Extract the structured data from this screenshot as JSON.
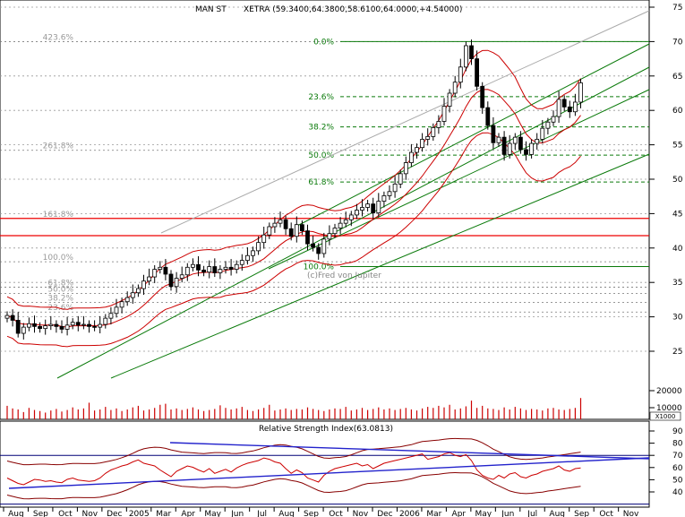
{
  "chart_data": [
    {
      "type": "candlestick",
      "title": "MAN ST",
      "quote_label": "XETRA (59.3400,64.3800,58.6100,64.0000,+4.54000)",
      "watermark": "(c)Fred von Jupiter",
      "ylim": [
        23,
        76
      ],
      "y_ticks": [
        25,
        30,
        35,
        40,
        45,
        50,
        55,
        60,
        65,
        70,
        75
      ],
      "fib_top": {
        "labels": [
          "0.0%",
          "23.6%",
          "38.2%",
          "50.0%",
          "61.8%",
          "100.0%"
        ],
        "values": [
          70.0,
          62.0,
          57.6,
          53.5,
          49.6,
          37.3
        ]
      },
      "fib_ext": {
        "labels": [
          "423.6%",
          "261.8%",
          "161.8%",
          "100.0%",
          "61.8%",
          "50.0%",
          "38.2%",
          "23.6%"
        ],
        "values": [
          70.0,
          54.2,
          44.3,
          38.0,
          34.3,
          33.4,
          32.1,
          30.7
        ]
      },
      "x_months": [
        "Aug",
        "Sep",
        "Oct",
        "Nov",
        "Dec",
        "2005",
        "Mar",
        "Apr",
        "May",
        "Jun",
        "Jul",
        "Aug",
        "Sep",
        "Oct",
        "Nov",
        "Dec",
        "2006",
        "Mar",
        "Apr",
        "May",
        "Jun",
        "Jul",
        "Aug",
        "Sep",
        "Oct",
        "Nov"
      ],
      "weekly_close": [
        30.2,
        29.5,
        27.6,
        28.5,
        29.0,
        28.6,
        28.3,
        28.7,
        28.9,
        28.6,
        28.2,
        28.8,
        29.2,
        28.8,
        28.9,
        28.6,
        28.5,
        28.9,
        29.8,
        30.5,
        31.4,
        32.2,
        32.8,
        33.5,
        34.1,
        35.2,
        35.8,
        36.9,
        37.2,
        36.2,
        34.4,
        35.6,
        36.1,
        37.2,
        37.6,
        36.8,
        36.5,
        37.3,
        36.4,
        36.9,
        37.2,
        36.9,
        37.6,
        38.2,
        38.9,
        39.6,
        40.8,
        41.9,
        43.1,
        43.6,
        44.1,
        42.8,
        41.7,
        43.4,
        42.5,
        40.6,
        40.1,
        39.2,
        41.3,
        42.1,
        42.9,
        43.6,
        44.1,
        44.8,
        45.5,
        45.9,
        46.4,
        45.1,
        46.8,
        47.6,
        48.2,
        49.3,
        50.8,
        52.4,
        53.9,
        54.6,
        55.8,
        56.2,
        57.5,
        58.4,
        60.6,
        62.5,
        64.1,
        66.3,
        69.4,
        67.5,
        63.5,
        60.4,
        57.8,
        55.3,
        56.1,
        53.6,
        55.2,
        56.1,
        54.3,
        53.6,
        55.2,
        55.8,
        57.4,
        58.3,
        59.1,
        61.6,
        60.5,
        59.8,
        61.2,
        64.0
      ],
      "weekly_volume": [
        2.6,
        2.1,
        1.9,
        1.4,
        2.2,
        1.8,
        1.6,
        1.3,
        1.7,
        2.0,
        1.5,
        1.8,
        2.3,
        1.9,
        2.1,
        3.2,
        1.7,
        1.9,
        2.4,
        1.8,
        2.1,
        1.6,
        1.9,
        2.3,
        2.6,
        1.7,
        1.9,
        2.2,
        2.8,
        3.0,
        1.9,
        2.1,
        1.8,
        2.0,
        2.3,
        1.9,
        1.6,
        1.8,
        2.0,
        2.7,
        2.2,
        1.9,
        2.1,
        2.4,
        1.8,
        1.6,
        1.9,
        2.2,
        2.8,
        1.7,
        1.9,
        2.1,
        1.8,
        2.0,
        1.9,
        2.3,
        2.0,
        1.8,
        1.6,
        1.9,
        2.1,
        2.0,
        2.4,
        1.7,
        1.9,
        2.2,
        1.8,
        2.0,
        2.3,
        1.9,
        2.1,
        1.8,
        2.0,
        2.2,
        1.9,
        1.7,
        2.1,
        2.4,
        2.2,
        2.6,
        2.3,
        2.8,
        1.9,
        2.1,
        2.5,
        3.6,
        2.2,
        2.6,
        2.1,
        2.0,
        1.8,
        2.3,
        1.9,
        2.4,
        2.1,
        1.8,
        2.0,
        1.9,
        1.7,
        2.1,
        2.2,
        1.9,
        1.8,
        2.0,
        2.2,
        4.1
      ],
      "volume_ticks": [
        "20000",
        "10000"
      ],
      "volume_unit": "X1000"
    },
    {
      "type": "line",
      "title": "Relative Strength Index(63.0813)",
      "ylim": [
        35,
        95
      ],
      "y_ticks": [
        40,
        50,
        60,
        70,
        80,
        90
      ],
      "weekly_rsi": [
        48,
        44,
        40,
        38,
        42,
        46,
        45,
        43,
        44,
        42,
        41,
        46,
        48,
        45,
        44,
        43,
        44,
        48,
        55,
        60,
        63,
        66,
        68,
        72,
        75,
        70,
        68,
        66,
        60,
        55,
        50,
        58,
        62,
        66,
        64,
        60,
        57,
        62,
        55,
        58,
        61,
        57,
        63,
        67,
        70,
        72,
        74,
        78,
        76,
        72,
        70,
        62,
        55,
        60,
        56,
        48,
        45,
        42,
        52,
        58,
        62,
        64,
        66,
        68,
        70,
        66,
        68,
        62,
        66,
        70,
        72,
        74,
        76,
        78,
        80,
        82,
        84,
        76,
        78,
        80,
        84,
        86,
        82,
        80,
        83,
        74,
        60,
        52,
        48,
        46,
        52,
        48,
        54,
        56,
        50,
        48,
        52,
        54,
        58,
        60,
        62,
        66,
        60,
        58,
        62,
        63
      ]
    }
  ]
}
